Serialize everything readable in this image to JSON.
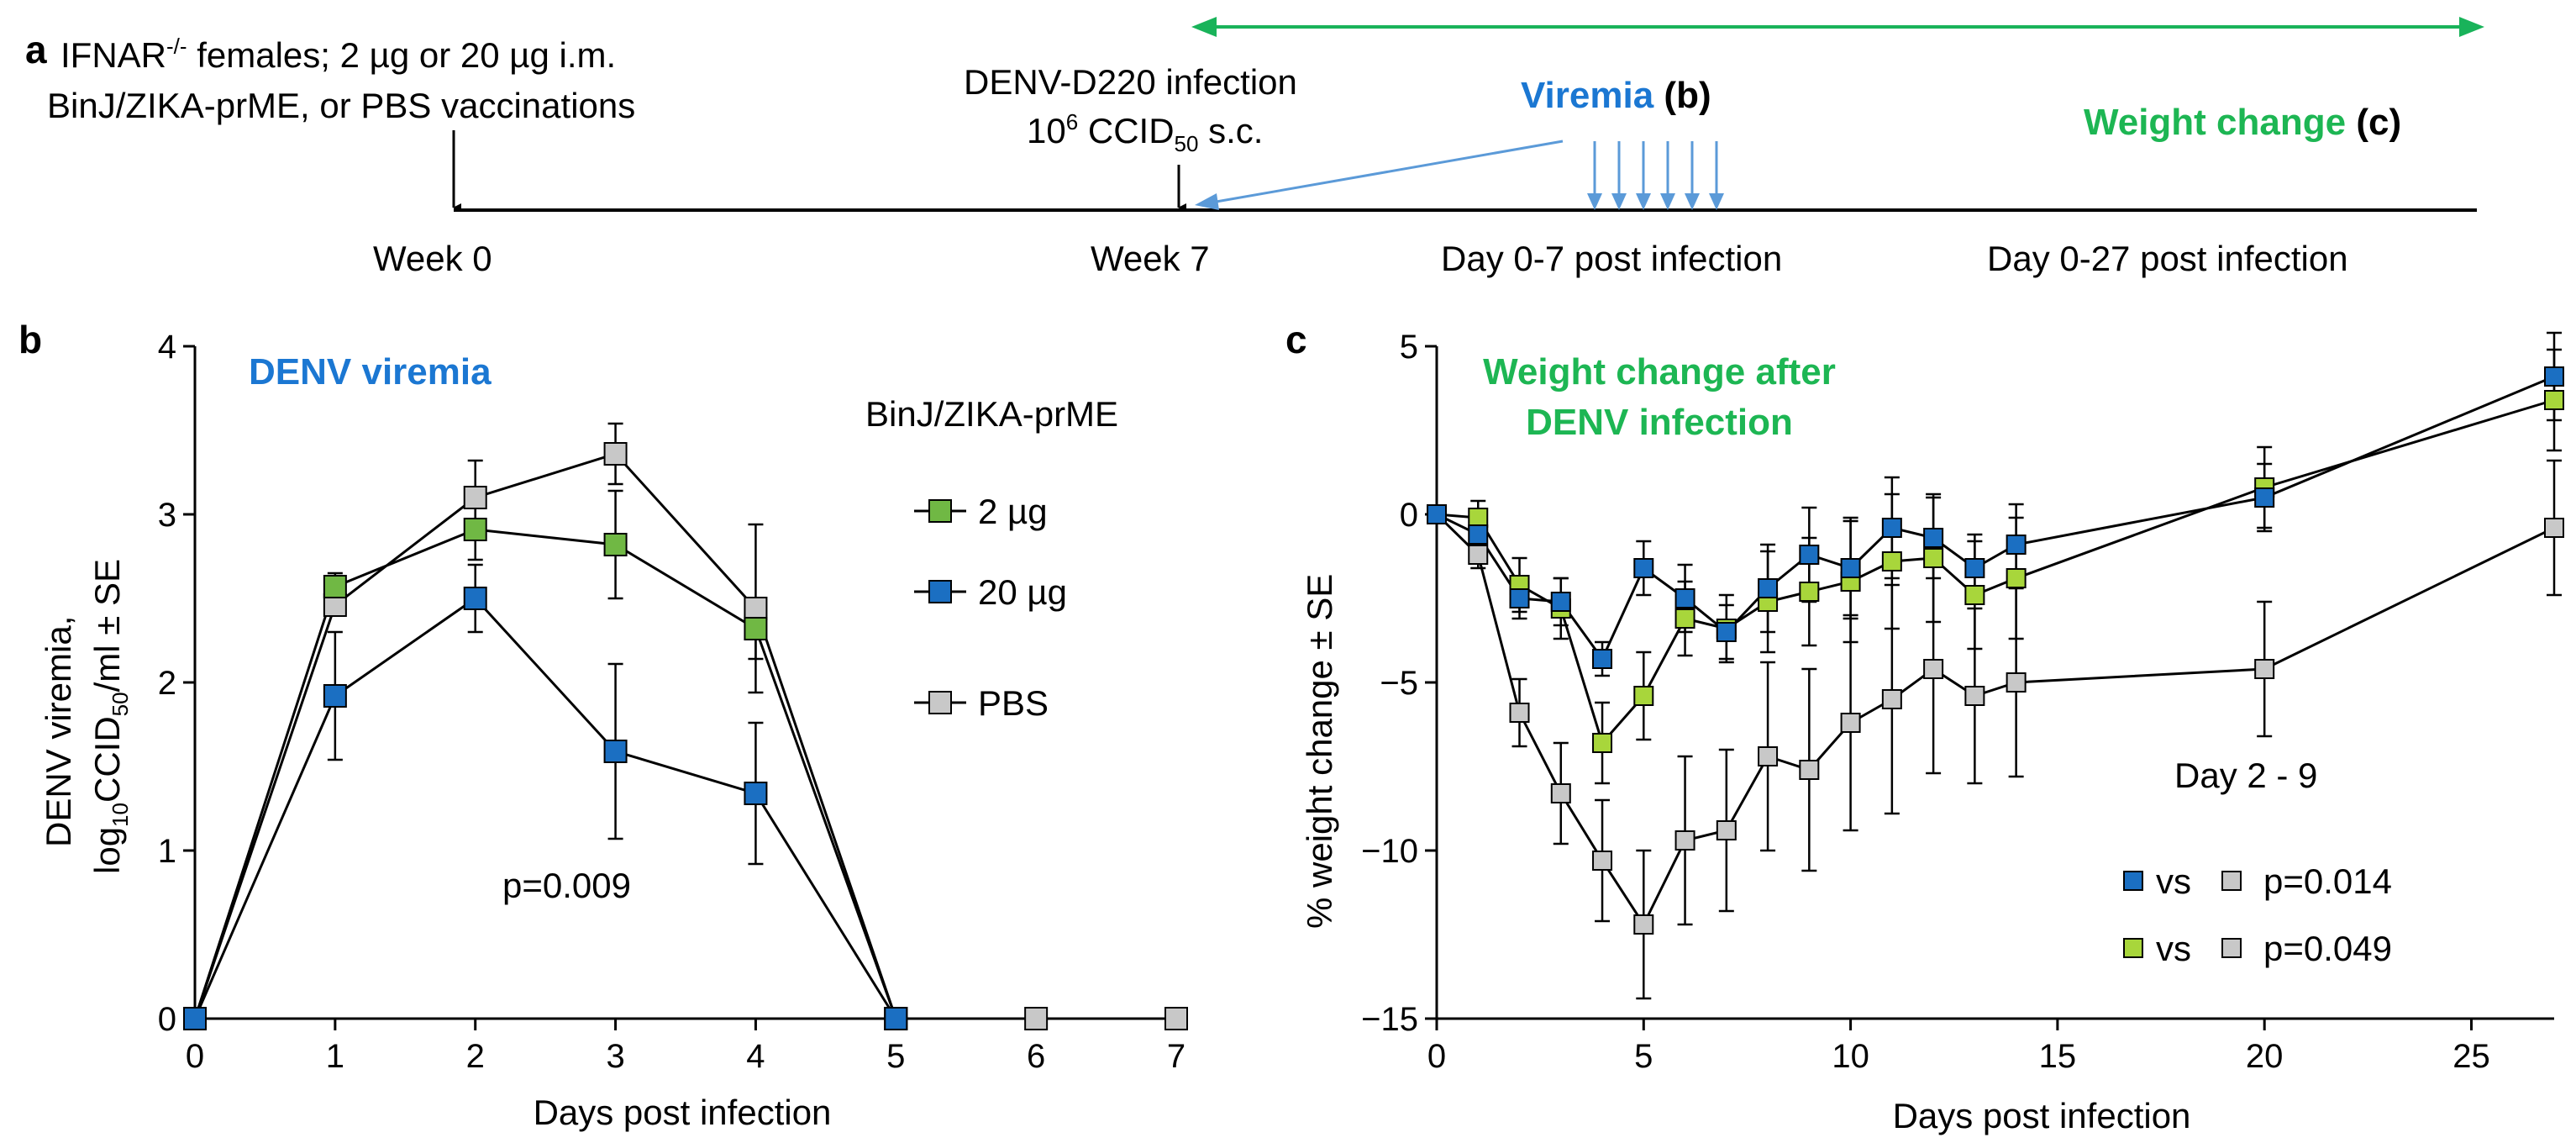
{
  "colors": {
    "blue": "#1b6fc2",
    "green": "#70b844",
    "lime": "#a8d63b",
    "gray": "#c8c8c8",
    "title_blue": "#1b77d2",
    "title_green": "#1db653",
    "timeline_green": "#19b35a",
    "timeline_blue": "#5b9ad8",
    "black": "#000000"
  },
  "timeline": {
    "panel_letter": "a",
    "vaccination_line1": "IFNAR",
    "vaccination_sup": "-/-",
    "vaccination_line1_rest": " females; 2 µg or 20 µg i.m.",
    "vaccination_line2": "BinJ/ZIKA-prME, or PBS vaccinations",
    "infection_line1": "DENV-D220 infection",
    "infection_line2_a": "10",
    "infection_line2_sup": "6",
    "infection_line2_b": " CCID",
    "infection_line2_sub": "50",
    "infection_line2_c": " s.c.",
    "viremia_label": "Viremia",
    "viremia_ref": "b",
    "weight_label": "Weight change",
    "weight_ref": "c",
    "week0": "Week 0",
    "week7": "Week 7",
    "day07": "Day 0-7 post infection",
    "day027": "Day 0-27 post infection"
  },
  "chart_data": [
    {
      "panel": "b",
      "type": "line",
      "title": "DENV viremia",
      "ylabel_line1": "DENV viremia,",
      "ylabel_line2_a": "log",
      "ylabel_line2_sub1": "10",
      "ylabel_line2_b": "CCID",
      "ylabel_line2_sub2": "50",
      "ylabel_line2_c": "/ml ± SE",
      "xlabel": "Days post infection",
      "xlim": [
        0,
        7
      ],
      "ylim": [
        0,
        4
      ],
      "xticks": [
        0,
        1,
        2,
        3,
        4,
        5,
        6,
        7
      ],
      "yticks": [
        0,
        1,
        2,
        3,
        4
      ],
      "legend_title": "BinJ/ZIKA-prME",
      "annotation": "p=0.009",
      "series": [
        {
          "name": "PBS",
          "color": "gray",
          "x": [
            0,
            1,
            2,
            3,
            4,
            5,
            6,
            7
          ],
          "y": [
            0,
            2.46,
            3.1,
            3.36,
            2.44,
            0,
            0,
            0
          ],
          "err": [
            0,
            0,
            0.22,
            0.18,
            0.5,
            0,
            0,
            0
          ]
        },
        {
          "name": "2 µg",
          "color": "green",
          "x": [
            0,
            1,
            2,
            3,
            4,
            5
          ],
          "y": [
            0,
            2.57,
            2.91,
            2.82,
            2.32,
            0
          ],
          "err": [
            0,
            0.08,
            0.18,
            0.32,
            0.18,
            0
          ]
        },
        {
          "name": "20 µg",
          "color": "blue",
          "x": [
            0,
            1,
            2,
            3,
            4,
            5
          ],
          "y": [
            0,
            1.92,
            2.5,
            1.59,
            1.34,
            0
          ],
          "err": [
            0,
            0.38,
            0.2,
            0.52,
            0.42,
            0
          ]
        }
      ]
    },
    {
      "panel": "c",
      "type": "line",
      "title_line1": "Weight change after",
      "title_line2": "DENV infection",
      "ylabel": "% weight change ± SE",
      "xlabel": "Days post infection",
      "xlim": [
        0,
        27
      ],
      "ylim": [
        -15,
        5
      ],
      "xticks": [
        0,
        5,
        10,
        15,
        20,
        25
      ],
      "yticks": [
        -15,
        -10,
        -5,
        0,
        5
      ],
      "legend_title": "Day 2 - 9",
      "legend_vs": "vs",
      "comparisons": [
        {
          "color": "blue",
          "vs_color": "gray",
          "p": "p=0.014"
        },
        {
          "color": "lime",
          "vs_color": "gray",
          "p": "p=0.049"
        }
      ],
      "series": [
        {
          "name": "PBS",
          "color": "gray",
          "x": [
            0,
            1,
            2,
            3,
            4,
            5,
            6,
            7,
            8,
            9,
            10,
            11,
            12,
            13,
            14,
            20,
            27
          ],
          "y": [
            0,
            -1.2,
            -5.9,
            -8.3,
            -10.3,
            -12.2,
            -9.7,
            -9.4,
            -7.2,
            -7.6,
            -6.2,
            -5.5,
            -4.6,
            -5.4,
            -5.0,
            -4.6,
            -0.4
          ],
          "err": [
            0,
            0.4,
            1.0,
            1.5,
            1.8,
            2.2,
            2.5,
            2.4,
            2.8,
            3.0,
            3.2,
            3.4,
            3.1,
            2.6,
            2.8,
            2.0,
            2.0
          ]
        },
        {
          "name": "2 µg",
          "color": "lime",
          "x": [
            0,
            1,
            2,
            3,
            4,
            5,
            6,
            7,
            8,
            9,
            10,
            11,
            12,
            13,
            14,
            20,
            27
          ],
          "y": [
            0,
            -0.1,
            -2.1,
            -2.8,
            -6.8,
            -5.4,
            -3.1,
            -3.4,
            -2.6,
            -2.3,
            -2.0,
            -1.4,
            -1.3,
            -2.4,
            -1.9,
            0.8,
            3.4
          ],
          "err": [
            0,
            0.5,
            0.8,
            0.9,
            1.2,
            1.3,
            1.1,
            1.0,
            1.5,
            1.6,
            1.8,
            2.0,
            1.9,
            1.6,
            1.8,
            1.2,
            1.5
          ]
        },
        {
          "name": "20 µg",
          "color": "blue",
          "x": [
            0,
            1,
            2,
            3,
            4,
            5,
            6,
            7,
            8,
            9,
            10,
            11,
            12,
            13,
            14,
            20,
            27
          ],
          "y": [
            0,
            -0.6,
            -2.5,
            -2.6,
            -4.3,
            -1.6,
            -2.5,
            -3.5,
            -2.2,
            -1.2,
            -1.6,
            -0.4,
            -0.7,
            -1.6,
            -0.9,
            0.5,
            4.1
          ],
          "err": [
            0,
            0.5,
            0.6,
            0.7,
            0.5,
            0.8,
            1.0,
            0.8,
            1.3,
            1.4,
            1.5,
            1.5,
            1.2,
            1.0,
            1.2,
            1.0,
            1.3
          ]
        }
      ]
    }
  ]
}
